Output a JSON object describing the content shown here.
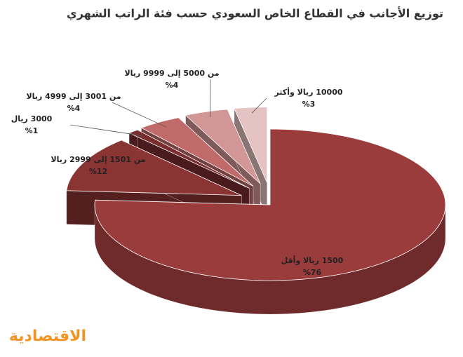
{
  "chart_data": {
    "type": "pie3d",
    "title": "توزيع الأجانب في القطاع الخاص السعودي حسب فئة الراتب الشهري",
    "categories": [
      "1500 ريالا وأقل",
      "من 1501 إلى 2999 ريالا",
      "3000 ريال",
      "من 3001 إلى 4999 ريالا",
      "من 5000 إلى 9999 ريالا",
      "10000 ريالا وأكثر"
    ],
    "values": [
      76,
      12,
      1,
      4,
      4,
      3
    ],
    "value_labels": [
      "%76",
      "%12",
      "%1",
      "%4",
      "%4",
      "%3"
    ],
    "colors": [
      "#9a3b3c",
      "#8a3434",
      "#7a2d2e",
      "#c06a6a",
      "#d29696",
      "#e6c3c3"
    ],
    "brand": "الاقتصادية"
  }
}
